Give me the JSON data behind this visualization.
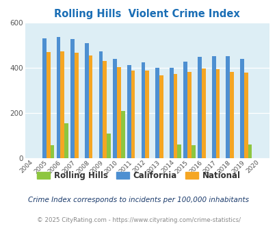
{
  "title": "Rolling Hills  Violent Crime Index",
  "years": [
    2004,
    2005,
    2006,
    2007,
    2008,
    2009,
    2010,
    2011,
    2012,
    2013,
    2014,
    2015,
    2016,
    2017,
    2018,
    2019,
    2020
  ],
  "rolling_hills": [
    0,
    57,
    155,
    0,
    0,
    108,
    210,
    0,
    0,
    0,
    62,
    57,
    0,
    0,
    0,
    62,
    0
  ],
  "california": [
    0,
    530,
    537,
    528,
    510,
    472,
    440,
    411,
    424,
    400,
    400,
    426,
    449,
    451,
    451,
    440,
    0
  ],
  "national": [
    0,
    469,
    473,
    467,
    455,
    429,
    404,
    387,
    387,
    367,
    373,
    383,
    397,
    395,
    381,
    379,
    0
  ],
  "color_rh": "#8dc63f",
  "color_ca": "#4d8fd1",
  "color_nat": "#f5a623",
  "bg_color": "#ddeef5",
  "title_color": "#1a6eb5",
  "subtitle_color": "#1a3a6b",
  "footer_color": "#888888",
  "footer_link_color": "#4d8fd1",
  "ylim": [
    0,
    600
  ],
  "yticks": [
    0,
    200,
    400,
    600
  ],
  "subtitle": "Crime Index corresponds to incidents per 100,000 inhabitants",
  "footer": "© 2025 CityRating.com - https://www.cityrating.com/crime-statistics/",
  "bar_width": 0.28
}
